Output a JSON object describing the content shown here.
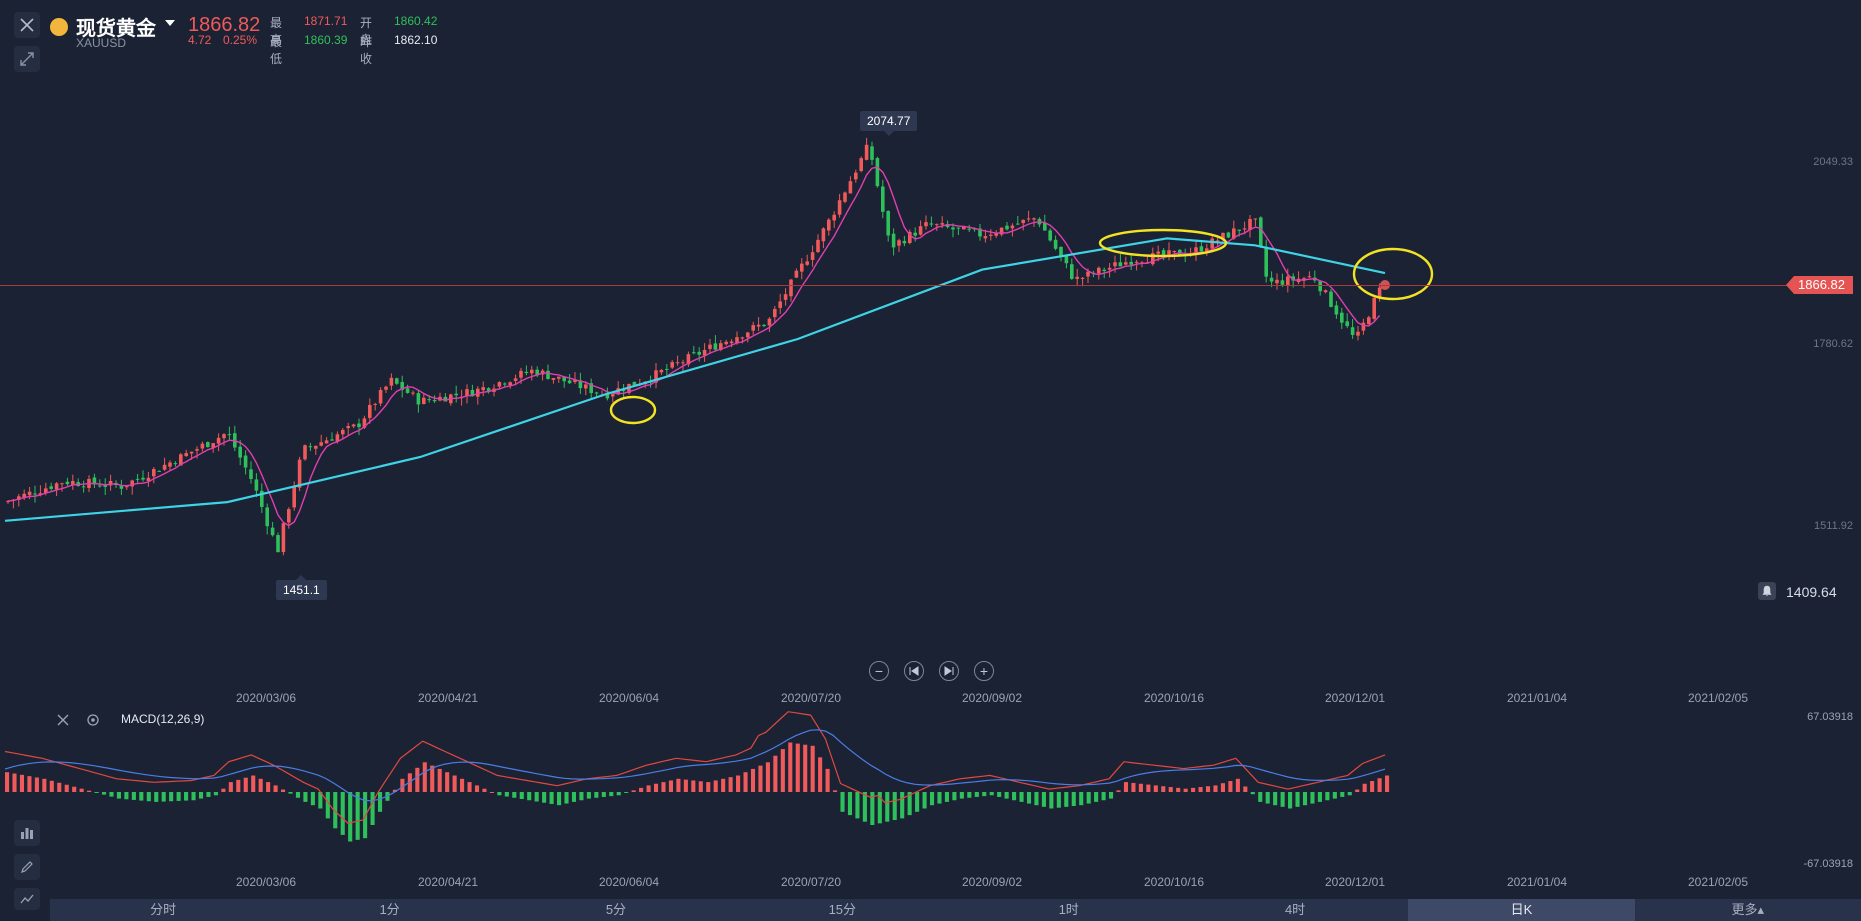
{
  "header": {
    "name": "现货黄金",
    "symbol": "XAUUSD",
    "price": "1866.82",
    "change": "4.72",
    "change_pct": "0.25%",
    "high_label": "最高",
    "high": "1871.71",
    "low_label": "最低",
    "low": "1860.39",
    "open_label": "开盘",
    "open": "1860.42",
    "prev_close_label": "昨收",
    "prev_close": "1862.10"
  },
  "price_axis": [
    "2049.33",
    "1780.62",
    "1511.92"
  ],
  "current_price_tag": "1866.82",
  "alert_price": "1409.64",
  "callouts": {
    "high": "2074.77",
    "low": "1451.1"
  },
  "date_labels": [
    "2020/03/06",
    "2020/04/21",
    "2020/06/04",
    "2020/07/20",
    "2020/09/02",
    "2020/10/16",
    "2020/12/01",
    "2021/01/04",
    "2021/02/05"
  ],
  "indicator": {
    "name": "MACD(12,26,9)",
    "axis_top": "67.03918",
    "axis_bottom": "-67.03918"
  },
  "periods": [
    {
      "label": "分时",
      "active": false
    },
    {
      "label": "1分",
      "active": false
    },
    {
      "label": "5分",
      "active": false
    },
    {
      "label": "15分",
      "active": false
    },
    {
      "label": "1时",
      "active": false
    },
    {
      "label": "4时",
      "active": false
    },
    {
      "label": "日K",
      "active": true
    },
    {
      "label": "更多▴",
      "active": false
    }
  ],
  "colors": {
    "up": "#f05a5a",
    "down": "#2ec05b",
    "ma_short": "#e13fb0",
    "ma_long": "#3fd3e6",
    "highlight": "#f2e323"
  },
  "chart_data": {
    "type": "candlestick",
    "series_name": "XAUUSD",
    "x_range": [
      "2020/01",
      "2021/02/05"
    ],
    "y_range": [
      1409.64,
      2110
    ],
    "high": 2074.77,
    "low": 1451.1,
    "last": 1866.82,
    "close_path": [
      [
        "2020/01/13",
        1545
      ],
      [
        "2020/01/27",
        1575
      ],
      [
        "2020/02/10",
        1568
      ],
      [
        "2020/02/24",
        1610
      ],
      [
        "2020/03/06",
        1645
      ],
      [
        "2020/03/12",
        1575
      ],
      [
        "2020/03/18",
        1475
      ],
      [
        "2020/03/24",
        1620
      ],
      [
        "2020/04/06",
        1655
      ],
      [
        "2020/04/14",
        1720
      ],
      [
        "2020/04/21",
        1690
      ],
      [
        "2020/05/04",
        1705
      ],
      [
        "2020/05/18",
        1735
      ],
      [
        "2020/06/04",
        1700
      ],
      [
        "2020/06/15",
        1725
      ],
      [
        "2020/06/30",
        1770
      ],
      [
        "2020/07/13",
        1805
      ],
      [
        "2020/07/27",
        1945
      ],
      [
        "2020/08/06",
        2060
      ],
      [
        "2020/08/11",
        1912
      ],
      [
        "2020/08/20",
        1945
      ],
      [
        "2020/09/02",
        1930
      ],
      [
        "2020/09/15",
        1955
      ],
      [
        "2020/09/24",
        1865
      ],
      [
        "2020/10/08",
        1895
      ],
      [
        "2020/10/22",
        1905
      ],
      [
        "2020/11/06",
        1950
      ],
      [
        "2020/11/09",
        1860
      ],
      [
        "2020/11/20",
        1870
      ],
      [
        "2020/11/30",
        1777
      ],
      [
        "2020/12/07",
        1866.82
      ]
    ],
    "ma_long": [
      [
        "2020/01/13",
        1518
      ],
      [
        "2020/03/06",
        1545
      ],
      [
        "2020/04/21",
        1610
      ],
      [
        "2020/06/04",
        1700
      ],
      [
        "2020/07/20",
        1780
      ],
      [
        "2020/09/02",
        1880
      ],
      [
        "2020/10/16",
        1925
      ],
      [
        "2020/11/06",
        1915
      ],
      [
        "2020/12/07",
        1875
      ]
    ]
  },
  "macd_data": {
    "type": "bar",
    "points": [
      [
        0,
        12
      ],
      [
        5,
        8
      ],
      [
        10,
        2
      ],
      [
        15,
        -4
      ],
      [
        20,
        -6
      ],
      [
        25,
        -5
      ],
      [
        28,
        -2
      ],
      [
        30,
        6
      ],
      [
        33,
        10
      ],
      [
        36,
        4
      ],
      [
        40,
        -6
      ],
      [
        42,
        -10
      ],
      [
        44,
        -22
      ],
      [
        46,
        -30
      ],
      [
        48,
        -28
      ],
      [
        50,
        -12
      ],
      [
        53,
        8
      ],
      [
        56,
        18
      ],
      [
        58,
        14
      ],
      [
        62,
        6
      ],
      [
        66,
        -2
      ],
      [
        70,
        -5
      ],
      [
        74,
        -8
      ],
      [
        78,
        -4
      ],
      [
        82,
        -2
      ],
      [
        86,
        4
      ],
      [
        90,
        8
      ],
      [
        94,
        6
      ],
      [
        98,
        10
      ],
      [
        102,
        18
      ],
      [
        105,
        30
      ],
      [
        108,
        28
      ],
      [
        110,
        14
      ],
      [
        112,
        -12
      ],
      [
        116,
        -20
      ],
      [
        120,
        -16
      ],
      [
        124,
        -8
      ],
      [
        128,
        -4
      ],
      [
        132,
        -2
      ],
      [
        136,
        -6
      ],
      [
        140,
        -10
      ],
      [
        144,
        -8
      ],
      [
        148,
        -4
      ],
      [
        150,
        6
      ],
      [
        154,
        4
      ],
      [
        158,
        2
      ],
      [
        162,
        4
      ],
      [
        165,
        8
      ],
      [
        168,
        -6
      ],
      [
        172,
        -10
      ],
      [
        176,
        -6
      ],
      [
        180,
        -2
      ],
      [
        182,
        5
      ],
      [
        185,
        10
      ]
    ]
  }
}
